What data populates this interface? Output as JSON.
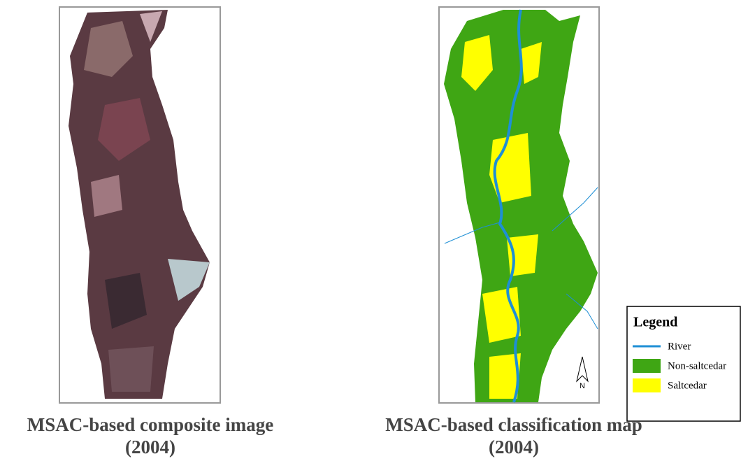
{
  "panels": [
    {
      "caption": [
        "MSAC-based composite image",
        "(2004)"
      ]
    },
    {
      "caption": [
        "MSAC-based classification map",
        "(2004)"
      ],
      "north_arrow": "N"
    }
  ],
  "legend": {
    "title": "Legend",
    "items": [
      "River",
      "Non-saltcedar",
      "Saltcedar"
    ]
  }
}
